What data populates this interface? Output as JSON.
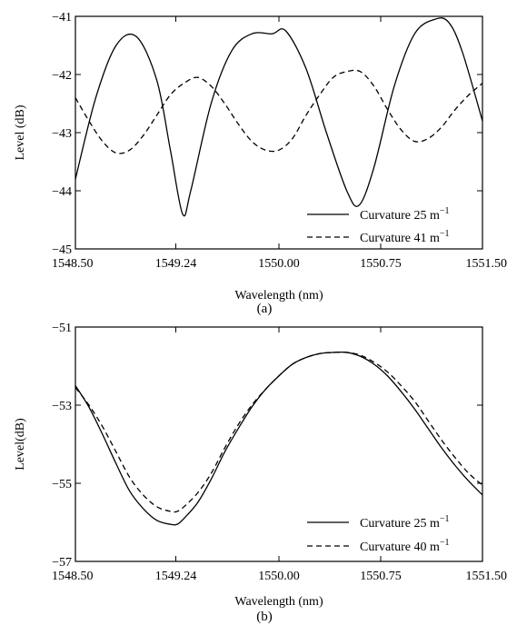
{
  "figure": {
    "panel_a_caption": "(a)",
    "panel_b_caption": "(b)"
  },
  "chart_data": [
    {
      "type": "line",
      "xlabel": "Wavelength (nm)",
      "ylabel": "Level (dB)",
      "xlim": [
        1548.5,
        1551.5
      ],
      "ylim": [
        -45,
        -41
      ],
      "xticks": [
        1548.5,
        1549.24,
        1550.0,
        1550.75,
        1551.5
      ],
      "xtick_labels": [
        "1548.50",
        "1549.24",
        "1550.00",
        "1550.75",
        "1551.50"
      ],
      "yticks": [
        -45,
        -44,
        -43,
        -42,
        -41
      ],
      "ytick_labels": [
        "−45",
        "−44",
        "−43",
        "−42",
        "−41"
      ],
      "grid": false,
      "legend_position": "bottom-right",
      "series": [
        {
          "name": "Curvature 25 m",
          "name_superscript": "−1",
          "line_style": "solid",
          "color": "#000000",
          "x": [
            1548.5,
            1548.65,
            1548.8,
            1548.95,
            1549.1,
            1549.2,
            1549.29,
            1549.35,
            1549.5,
            1549.65,
            1549.8,
            1549.95,
            1550.05,
            1550.2,
            1550.35,
            1550.5,
            1550.59,
            1550.7,
            1550.85,
            1551.0,
            1551.15,
            1551.25,
            1551.35,
            1551.5
          ],
          "y": [
            -43.8,
            -42.4,
            -41.5,
            -41.35,
            -42.1,
            -43.3,
            -44.4,
            -44.0,
            -42.5,
            -41.6,
            -41.3,
            -41.3,
            -41.25,
            -41.9,
            -43.0,
            -44.0,
            -44.25,
            -43.6,
            -42.2,
            -41.3,
            -41.05,
            -41.1,
            -41.6,
            -42.8
          ]
        },
        {
          "name": "Curvature 41 m",
          "name_superscript": "−1",
          "line_style": "dashed",
          "color": "#000000",
          "x": [
            1548.5,
            1548.6,
            1548.7,
            1548.8,
            1548.9,
            1549.0,
            1549.1,
            1549.2,
            1549.3,
            1549.4,
            1549.5,
            1549.6,
            1549.7,
            1549.8,
            1549.9,
            1550.0,
            1550.1,
            1550.2,
            1550.3,
            1550.4,
            1550.5,
            1550.6,
            1550.7,
            1550.8,
            1550.9,
            1551.0,
            1551.1,
            1551.2,
            1551.3,
            1551.4,
            1551.5
          ],
          "y": [
            -42.4,
            -42.8,
            -43.15,
            -43.35,
            -43.3,
            -43.05,
            -42.7,
            -42.35,
            -42.15,
            -42.05,
            -42.2,
            -42.5,
            -42.85,
            -43.15,
            -43.3,
            -43.3,
            -43.1,
            -42.7,
            -42.35,
            -42.05,
            -41.95,
            -41.95,
            -42.2,
            -42.6,
            -42.95,
            -43.15,
            -43.1,
            -42.9,
            -42.6,
            -42.35,
            -42.15
          ]
        }
      ]
    },
    {
      "type": "line",
      "xlabel": "Wavelength (nm)",
      "ylabel": "Level(dB)",
      "xlim": [
        1548.5,
        1551.5
      ],
      "ylim": [
        -57,
        -51
      ],
      "xticks": [
        1548.5,
        1549.24,
        1550.0,
        1550.75,
        1551.5
      ],
      "xtick_labels": [
        "1548.50",
        "1549.24",
        "1550.00",
        "1550.75",
        "1551.50"
      ],
      "yticks": [
        -57,
        -55,
        -53,
        -51
      ],
      "ytick_labels": [
        "−57",
        "−55",
        "−53",
        "−51"
      ],
      "grid": false,
      "legend_position": "bottom-right",
      "series": [
        {
          "name": "Curvature 25 m",
          "name_superscript": "−1",
          "line_style": "solid",
          "color": "#000000",
          "x": [
            1548.5,
            1548.6,
            1548.7,
            1548.8,
            1548.9,
            1549.0,
            1549.1,
            1549.2,
            1549.25,
            1549.3,
            1549.4,
            1549.5,
            1549.6,
            1549.7,
            1549.8,
            1549.9,
            1550.0,
            1550.1,
            1550.2,
            1550.3,
            1550.4,
            1550.5,
            1550.6,
            1550.7,
            1550.8,
            1550.9,
            1551.0,
            1551.1,
            1551.2,
            1551.3,
            1551.4,
            1551.5
          ],
          "y": [
            -52.5,
            -53.05,
            -53.75,
            -54.5,
            -55.2,
            -55.65,
            -55.95,
            -56.05,
            -56.05,
            -55.9,
            -55.5,
            -54.9,
            -54.2,
            -53.6,
            -53.05,
            -52.6,
            -52.25,
            -51.95,
            -51.78,
            -51.68,
            -51.65,
            -51.65,
            -51.75,
            -51.95,
            -52.25,
            -52.65,
            -53.1,
            -53.6,
            -54.1,
            -54.55,
            -54.95,
            -55.3
          ]
        },
        {
          "name": "Curvature 40 m",
          "name_superscript": "−1",
          "line_style": "dashed",
          "color": "#000000",
          "x": [
            1548.5,
            1548.6,
            1548.7,
            1548.8,
            1548.9,
            1549.0,
            1549.1,
            1549.2,
            1549.25,
            1549.3,
            1549.4,
            1549.5,
            1549.6,
            1549.7,
            1549.8,
            1549.9,
            1550.0,
            1550.1,
            1550.2,
            1550.3,
            1550.4,
            1550.5,
            1550.6,
            1550.7,
            1550.8,
            1550.9,
            1551.0,
            1551.1,
            1551.2,
            1551.3,
            1551.4,
            1551.5
          ],
          "y": [
            -52.55,
            -53.0,
            -53.55,
            -54.2,
            -54.85,
            -55.3,
            -55.6,
            -55.72,
            -55.72,
            -55.6,
            -55.25,
            -54.75,
            -54.1,
            -53.5,
            -53.0,
            -52.6,
            -52.25,
            -51.95,
            -51.78,
            -51.68,
            -51.65,
            -51.65,
            -51.72,
            -51.9,
            -52.15,
            -52.5,
            -52.9,
            -53.4,
            -53.9,
            -54.35,
            -54.75,
            -55.05
          ]
        }
      ]
    }
  ]
}
